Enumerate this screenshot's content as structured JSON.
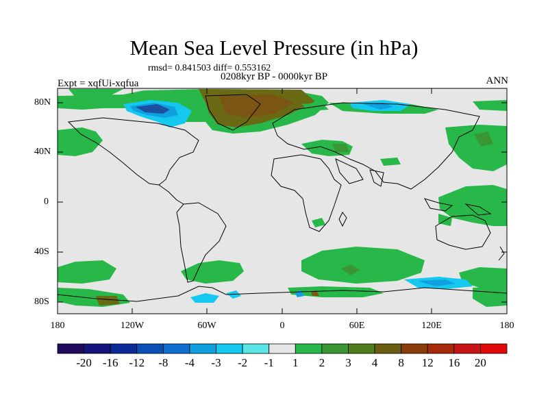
{
  "title": "Mean Sea Level Pressure (in hPa)",
  "stats": "rmsd= 0.841503 diff= 0.553162",
  "period": "0208kyr BP - 0000kyr BP",
  "experiment": "Expt = xqfUi-xqfua",
  "season": "ANN",
  "lat_labels": [
    "80N",
    "40N",
    "0",
    "40S",
    "80S"
  ],
  "lon_labels": [
    "180",
    "120W",
    "60W",
    "0",
    "60E",
    "120E",
    "180"
  ],
  "colorbar": {
    "labels": [
      "-20",
      "-16",
      "-12",
      "-8",
      "-4",
      "-3",
      "-2",
      "-1",
      "1",
      "2",
      "3",
      "4",
      "8",
      "12",
      "16",
      "20"
    ],
    "colors": [
      "#1f0a5c",
      "#14147a",
      "#0b2a96",
      "#0a4fb4",
      "#0f6fd0",
      "#0fa0e0",
      "#14c8f0",
      "#5ae6e6",
      "#e6e6e6",
      "#28b84a",
      "#3a9632",
      "#4f7d1a",
      "#6a5c10",
      "#8a3c0a",
      "#a8280a",
      "#c81414",
      "#e00a0a"
    ]
  },
  "colors": {
    "background": "#e6e6e6",
    "positive_1_2": "#28b84a",
    "positive_2_3": "#3a9632",
    "positive_3_4": "#6a6a14",
    "positive_4_8": "#7a5514",
    "negative_1_2": "#14c8f0",
    "negative_2_3": "#0fa0e0",
    "negative_3_4": "#1c4fa0",
    "coastline": "#000000"
  }
}
